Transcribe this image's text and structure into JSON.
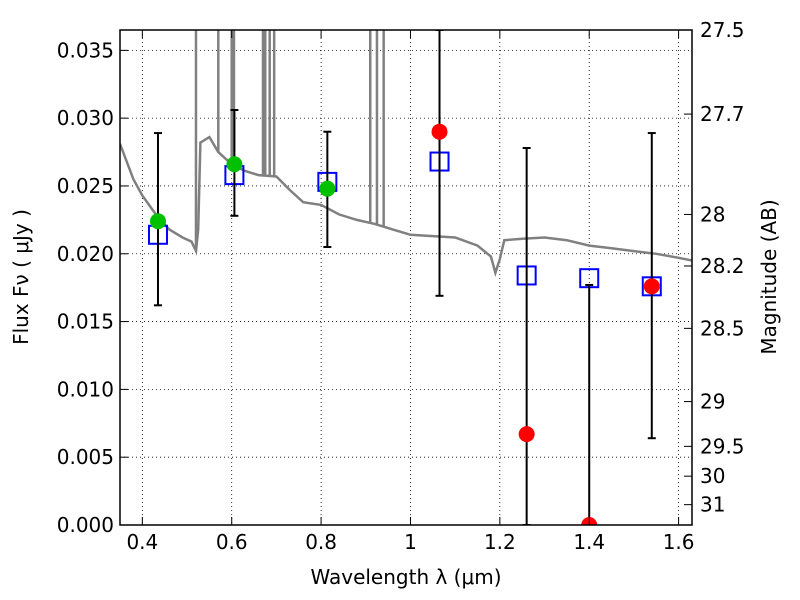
{
  "chart_data": {
    "type": "scatter",
    "xlabel": "Wavelength  λ (μm)",
    "ylabel": "Flux  Fν  ( μJy )",
    "ylabel_right": "Magnitude (AB)",
    "xlim": [
      0.35,
      1.63
    ],
    "ylim": [
      0.0,
      0.0365
    ],
    "grid": true,
    "x_ticks": [
      0.4,
      0.6,
      0.8,
      1.0,
      1.2,
      1.4,
      1.6
    ],
    "x_tick_labels": [
      "0.4",
      "0.6",
      "0.8",
      "1",
      "1.2",
      "1.4",
      "1.6"
    ],
    "y_ticks": [
      0.0,
      0.005,
      0.01,
      0.015,
      0.02,
      0.025,
      0.03,
      0.035
    ],
    "y_tick_labels": [
      "0.000",
      "0.005",
      "0.010",
      "0.015",
      "0.020",
      "0.025",
      "0.030",
      "0.035"
    ],
    "right_ticks": [
      {
        "label": "27.5",
        "flux": 0.0365
      },
      {
        "label": "27.7",
        "flux": 0.0303
      },
      {
        "label": "28",
        "flux": 0.0229
      },
      {
        "label": "28.2",
        "flux": 0.0191
      },
      {
        "label": "28.5",
        "flux": 0.0145
      },
      {
        "label": "29",
        "flux": 0.0091
      },
      {
        "label": "29.5",
        "flux": 0.0058
      },
      {
        "label": "30",
        "flux": 0.0036
      },
      {
        "label": "31",
        "flux": 0.0015
      }
    ],
    "series": [
      {
        "name": "model SED",
        "kind": "line",
        "color": "#808080",
        "x": [
          0.35,
          0.38,
          0.4,
          0.43,
          0.46,
          0.49,
          0.51,
          0.52,
          0.525,
          0.53,
          0.55,
          0.57,
          0.6,
          0.63,
          0.66,
          0.7,
          0.73,
          0.76,
          0.8,
          0.84,
          0.88,
          0.92,
          0.96,
          1.0,
          1.05,
          1.1,
          1.15,
          1.18,
          1.19,
          1.2,
          1.21,
          1.25,
          1.3,
          1.35,
          1.4,
          1.45,
          1.5,
          1.55,
          1.6,
          1.63
        ],
        "y": [
          0.0281,
          0.0255,
          0.0243,
          0.0229,
          0.0218,
          0.0212,
          0.0209,
          0.0202,
          0.0218,
          0.0282,
          0.0286,
          0.0275,
          0.0266,
          0.0261,
          0.0258,
          0.0257,
          0.0247,
          0.0238,
          0.0236,
          0.0229,
          0.0225,
          0.0222,
          0.0218,
          0.0214,
          0.0213,
          0.0212,
          0.0206,
          0.0198,
          0.0186,
          0.0196,
          0.021,
          0.0211,
          0.0212,
          0.021,
          0.0206,
          0.0204,
          0.0202,
          0.02,
          0.0197,
          0.0195
        ]
      },
      {
        "name": "emission lines",
        "kind": "spikes",
        "color": "#808080",
        "x": [
          0.52,
          0.57,
          0.6,
          0.605,
          0.67,
          0.675,
          0.685,
          0.695,
          0.91,
          0.925,
          0.94
        ],
        "y": [
          0.0365,
          0.0365,
          0.0365,
          0.0365,
          0.0365,
          0.0365,
          0.0365,
          0.0365,
          0.0365,
          0.0365,
          0.0365
        ]
      },
      {
        "name": "model photometry",
        "kind": "square",
        "color": "#0000ff",
        "x": [
          0.435,
          0.606,
          0.814,
          1.065,
          1.26,
          1.4,
          1.54
        ],
        "y": [
          0.0214,
          0.0258,
          0.0253,
          0.0268,
          0.0184,
          0.0182,
          0.0176
        ]
      },
      {
        "name": "observed (green)",
        "kind": "circle",
        "color": "#00c000",
        "x": [
          0.435,
          0.606,
          0.814
        ],
        "y": [
          0.0224,
          0.0266,
          0.0248
        ],
        "err_low": [
          0.0162,
          0.0228,
          0.0205
        ],
        "err_high": [
          0.0289,
          0.0306,
          0.029
        ]
      },
      {
        "name": "observed (red)",
        "kind": "circle",
        "color": "#ff0000",
        "x": [
          1.065,
          1.26,
          1.4,
          1.54
        ],
        "y": [
          0.029,
          0.0067,
          0.0,
          0.0176
        ],
        "err_low": [
          0.0169,
          0.0,
          0.0,
          0.0064
        ],
        "err_high": [
          0.0365,
          0.0278,
          0.0177,
          0.0289
        ]
      }
    ]
  }
}
